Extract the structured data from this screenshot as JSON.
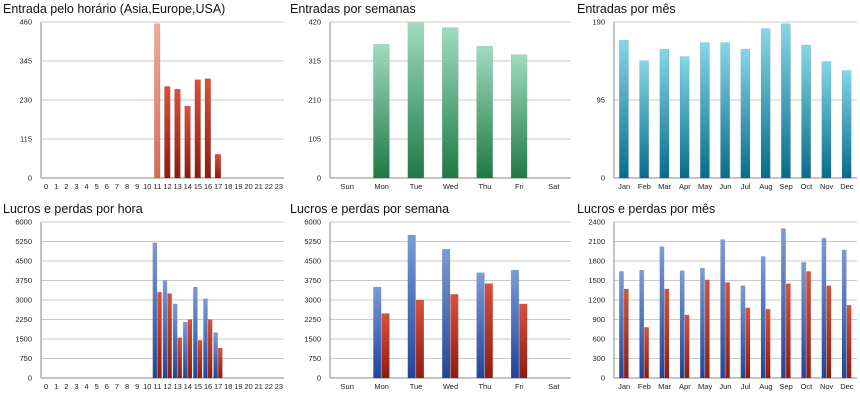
{
  "colors": {
    "red": [
      "#d9513a",
      "#8e1c10"
    ],
    "green": [
      "#9fdcc0",
      "#1f7a44"
    ],
    "teal": [
      "#86d6e8",
      "#076d8a"
    ],
    "blue": [
      "#7b9bd8",
      "#23449a"
    ],
    "grid": "#b9b9b9",
    "axis": "#8a8a8a"
  },
  "chart_data": [
    {
      "type": "bar",
      "title": "Entrada pelo horário (Asia,Europe,USA)",
      "categories": [
        "0",
        "1",
        "2",
        "3",
        "4",
        "5",
        "6",
        "7",
        "8",
        "9",
        "10",
        "11",
        "12",
        "13",
        "14",
        "15",
        "16",
        "17",
        "18",
        "19",
        "20",
        "21",
        "22",
        "23"
      ],
      "yticks": [
        "0",
        "115",
        "230",
        "345",
        "460"
      ],
      "ylim": [
        0,
        460
      ],
      "grid": true,
      "color": "red",
      "highlight": {
        "index": 11,
        "colors": [
          "#f5a898",
          "#d86a55"
        ]
      },
      "series": [
        {
          "values": [
            0,
            0,
            0,
            0,
            0,
            0,
            0,
            0,
            0,
            0,
            0,
            455,
            270,
            262,
            212,
            290,
            293,
            70,
            0,
            0,
            0,
            0,
            0,
            0
          ]
        }
      ]
    },
    {
      "type": "bar",
      "title": "Entradas por semanas",
      "categories": [
        "Sun",
        "Mon",
        "Tue",
        "Wed",
        "Thu",
        "Fri",
        "Sat"
      ],
      "yticks": [
        "0",
        "105",
        "210",
        "315",
        "420"
      ],
      "ylim": [
        0,
        420
      ],
      "grid": true,
      "color": "green",
      "series": [
        {
          "values": [
            0,
            360,
            418,
            405,
            355,
            332,
            0
          ]
        }
      ]
    },
    {
      "type": "bar",
      "title": "Entradas por mês",
      "categories": [
        "Jan",
        "Feb",
        "Mar",
        "Apr",
        "May",
        "Jun",
        "Jul",
        "Aug",
        "Sep",
        "Oct",
        "Nov",
        "Dec"
      ],
      "yticks": [
        "0",
        "95",
        "190"
      ],
      "ylim": [
        0,
        190
      ],
      "grid": true,
      "color": "teal",
      "series": [
        {
          "values": [
            168,
            143,
            157,
            148,
            165,
            165,
            157,
            182,
            188,
            162,
            142,
            131
          ]
        }
      ]
    },
    {
      "type": "bar",
      "title": "Lucros e perdas por hora",
      "categories": [
        "0",
        "1",
        "2",
        "3",
        "4",
        "5",
        "6",
        "7",
        "8",
        "9",
        "10",
        "11",
        "12",
        "13",
        "14",
        "15",
        "16",
        "17",
        "18",
        "19",
        "20",
        "21",
        "22",
        "23"
      ],
      "yticks": [
        "0",
        "750",
        "1500",
        "2250",
        "3000",
        "3750",
        "4500",
        "5250",
        "6000"
      ],
      "ylim": [
        0,
        6000
      ],
      "grid": true,
      "series": [
        {
          "color": "blue",
          "values": [
            0,
            0,
            0,
            0,
            0,
            0,
            0,
            0,
            0,
            0,
            0,
            5200,
            3750,
            2850,
            2150,
            3500,
            3050,
            1750,
            0,
            0,
            0,
            0,
            0,
            0
          ]
        },
        {
          "color": "red",
          "values": [
            0,
            0,
            0,
            0,
            0,
            0,
            0,
            0,
            0,
            0,
            0,
            3300,
            3250,
            1550,
            2250,
            1450,
            2250,
            1150,
            0,
            0,
            0,
            0,
            0,
            0
          ]
        }
      ]
    },
    {
      "type": "bar",
      "title": "Lucros e perdas por semana",
      "categories": [
        "Sun",
        "Mon",
        "Tue",
        "Wed",
        "Thu",
        "Fri",
        "Sat"
      ],
      "yticks": [
        "0",
        "750",
        "1500",
        "2250",
        "3000",
        "3750",
        "4500",
        "5250",
        "6000"
      ],
      "ylim": [
        0,
        6000
      ],
      "grid": true,
      "series": [
        {
          "color": "blue",
          "values": [
            0,
            3500,
            5500,
            4950,
            4050,
            4150,
            0
          ]
        },
        {
          "color": "red",
          "values": [
            0,
            2480,
            3000,
            3220,
            3630,
            2850,
            0
          ]
        }
      ]
    },
    {
      "type": "bar",
      "title": "Lucros e perdas por mês",
      "categories": [
        "Jan",
        "Feb",
        "Mar",
        "Apr",
        "May",
        "Jun",
        "Jul",
        "Aug",
        "Sep",
        "Oct",
        "Nov",
        "Dec"
      ],
      "yticks": [
        "0",
        "300",
        "600",
        "900",
        "1200",
        "1500",
        "1800",
        "2100",
        "2400"
      ],
      "ylim": [
        0,
        2400
      ],
      "grid": true,
      "series": [
        {
          "color": "blue",
          "values": [
            1640,
            1660,
            2020,
            1650,
            1690,
            2130,
            1420,
            1870,
            2300,
            1780,
            2150,
            1970
          ]
        },
        {
          "color": "red",
          "values": [
            1370,
            780,
            1370,
            970,
            1510,
            1470,
            1080,
            1060,
            1450,
            1640,
            1420,
            1120
          ]
        }
      ]
    }
  ]
}
